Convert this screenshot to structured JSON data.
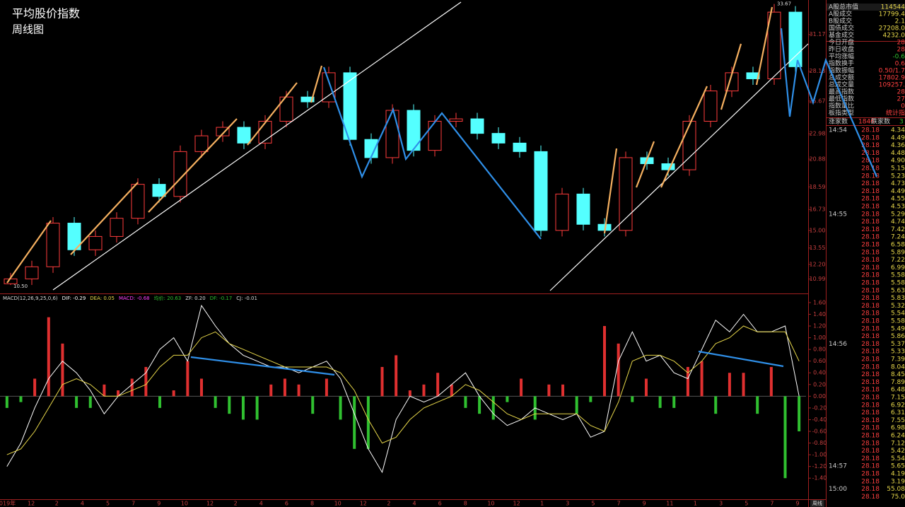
{
  "title": "平均股价指数",
  "subtitle": "周线图",
  "chart_data": [
    {
      "type": "candlestick",
      "ylim": [
        9.8,
        34.0
      ],
      "yticks": [
        10.99,
        {
          "value": 12.2,
          "label": "12.20"
        },
        13.55,
        {
          "value": 15,
          "label": "15.00"
        },
        16.73,
        18.59,
        20.88,
        22.98,
        25.67,
        28.13,
        31.17
      ],
      "up_color": "#ff3c3c",
      "down_color": "#54ffff",
      "open": [
        10.6,
        11.0,
        12.0,
        15.6,
        13.4,
        14.5,
        16.0,
        18.8,
        17.8,
        21.5,
        22.8,
        23.5,
        22.2,
        24.0,
        26.0,
        25.6,
        28.0,
        22.5,
        21.0,
        24.9,
        21.6,
        24.0,
        24.2,
        23.0,
        22.2,
        21.5,
        15.0,
        18.0,
        15.5,
        15.0,
        21.0,
        20.5,
        20.0,
        24.0,
        26.5,
        28.0,
        27.5,
        33.0
      ],
      "high": [
        11.5,
        12.5,
        16.1,
        16.1,
        15.0,
        16.5,
        19.3,
        19.3,
        22.0,
        23.3,
        24.0,
        24.0,
        24.5,
        26.5,
        26.5,
        28.5,
        28.5,
        23.0,
        25.4,
        25.4,
        24.5,
        24.7,
        24.7,
        23.5,
        22.7,
        22.0,
        18.5,
        18.5,
        16.0,
        21.5,
        21.5,
        21.0,
        24.5,
        27.0,
        28.5,
        28.5,
        33.67,
        33.5
      ],
      "low": [
        10.5,
        10.5,
        11.5,
        12.9,
        12.9,
        14.0,
        15.5,
        17.3,
        17.3,
        21.0,
        22.3,
        21.7,
        21.7,
        23.5,
        25.1,
        25.1,
        22.0,
        20.5,
        20.5,
        21.1,
        21.1,
        23.5,
        22.5,
        21.7,
        21.0,
        14.5,
        14.5,
        15.0,
        14.5,
        14.5,
        20.0,
        19.5,
        19.5,
        23.5,
        26.0,
        27.0,
        27.0,
        28.0
      ],
      "close": [
        11.0,
        12.0,
        15.6,
        13.4,
        14.5,
        16.0,
        18.8,
        17.8,
        21.5,
        22.8,
        23.5,
        22.2,
        24.0,
        26.0,
        25.6,
        28.0,
        22.5,
        21.0,
        24.9,
        21.6,
        24.0,
        24.2,
        23.0,
        22.2,
        21.5,
        15.0,
        18.0,
        15.5,
        15.0,
        21.0,
        20.5,
        20.0,
        24.0,
        26.5,
        28.0,
        27.5,
        33.0,
        28.5
      ],
      "annotations": [
        {
          "value": 10.5,
          "label": "10.50"
        },
        {
          "value": 33.67,
          "label": "33.67"
        }
      ]
    },
    {
      "type": "macd",
      "header": [
        {
          "text": "MACD(12,26,9,25,0,6)",
          "color": "#dddddd"
        },
        {
          "text": "DIF: -0.29",
          "color": "#ffffff"
        },
        {
          "text": "DEA: 0.05",
          "color": "#e8d84a"
        },
        {
          "text": "MACD: -0.68",
          "color": "#ff40ff"
        },
        {
          "text": "均价: 20.63",
          "color": "#30c030"
        },
        {
          "text": "ZF: 0.20",
          "color": "#dddddd"
        },
        {
          "text": "DF: -0.17",
          "color": "#30c030"
        },
        {
          "text": "CJ: -0.01",
          "color": "#dddddd"
        }
      ],
      "ylim": [
        -1.76,
        1.72
      ],
      "yticks": [
        {
          "value": 1.6,
          "label": "1.60"
        },
        {
          "value": 1.4,
          "label": "1.40"
        },
        {
          "value": 1.2,
          "label": "1.20"
        },
        {
          "value": 1,
          "label": "1.00"
        },
        {
          "value": 0.8,
          "label": "0.80"
        },
        {
          "value": 0.6,
          "label": "0.60"
        },
        {
          "value": 0.4,
          "label": "0.40"
        },
        {
          "value": 0.2,
          "label": "0.20"
        },
        {
          "value": 0,
          "label": "0.00"
        },
        {
          "value": -0.2,
          "label": "-0.20"
        },
        {
          "value": -0.4,
          "label": "-0.40"
        },
        {
          "value": -0.6,
          "label": "-0.60"
        },
        {
          "value": -0.8,
          "label": "-0.80"
        },
        {
          "value": -1,
          "label": "-1.00"
        },
        {
          "value": -1.2,
          "label": "-1.20"
        },
        {
          "value": -1.4,
          "label": "-1.40"
        }
      ],
      "up_color": "#e03030",
      "down_color": "#30c030",
      "histogram": [
        -0.2,
        -0.1,
        0.3,
        1.35,
        0.9,
        -0.2,
        -0.2,
        0.2,
        0.1,
        0.3,
        0.5,
        -0.2,
        0.1,
        0.6,
        0.3,
        -0.2,
        -0.3,
        -0.4,
        -0.4,
        0.2,
        0.3,
        0.2,
        -0.3,
        0.3,
        -0.4,
        -0.9,
        -0.9,
        0.5,
        0.7,
        0.1,
        0.2,
        0.4,
        0.2,
        -0.2,
        -0.3,
        -0.4,
        -0.1,
        0.3,
        -0.4,
        0.2,
        0.2,
        -0.3,
        -0.1,
        1.2,
        0.9,
        -0.1,
        0.3,
        -0.2,
        -0.2,
        0.5,
        0.6,
        -0.3,
        0.4,
        0.4,
        -0.3,
        0.5,
        -1.4,
        -0.6
      ],
      "series": [
        {
          "color": "#ffffff",
          "values": [
            -1.2,
            -0.8,
            -0.2,
            0.3,
            0.6,
            0.4,
            0.1,
            -0.3,
            0.0,
            0.2,
            0.4,
            0.8,
            1.0,
            0.6,
            1.55,
            1.2,
            0.9,
            0.7,
            0.6,
            0.5,
            0.5,
            0.4,
            0.5,
            0.6,
            0.3,
            -0.3,
            -0.9,
            -1.3,
            -0.4,
            0.0,
            -0.1,
            0.0,
            0.2,
            0.4,
            0.0,
            -0.3,
            -0.5,
            -0.4,
            -0.2,
            -0.3,
            -0.4,
            -0.3,
            -0.7,
            -0.6,
            0.6,
            1.1,
            0.6,
            0.7,
            0.4,
            0.3,
            0.8,
            1.3,
            1.1,
            1.4,
            1.1,
            1.1,
            1.2,
            0.0
          ]
        },
        {
          "color": "#e8d84a",
          "values": [
            -1.0,
            -0.9,
            -0.6,
            -0.2,
            0.2,
            0.3,
            0.2,
            0.0,
            0.0,
            0.1,
            0.2,
            0.5,
            0.7,
            0.7,
            1.0,
            1.1,
            0.9,
            0.8,
            0.7,
            0.6,
            0.5,
            0.5,
            0.5,
            0.5,
            0.4,
            0.1,
            -0.4,
            -0.8,
            -0.7,
            -0.4,
            -0.2,
            -0.1,
            0.0,
            0.2,
            0.1,
            -0.1,
            -0.3,
            -0.4,
            -0.3,
            -0.3,
            -0.3,
            -0.3,
            -0.5,
            -0.6,
            -0.1,
            0.6,
            0.7,
            0.7,
            0.6,
            0.4,
            0.6,
            0.9,
            1.0,
            1.2,
            1.1,
            1.1,
            1.1,
            0.6
          ]
        }
      ]
    }
  ],
  "time_axis_labels": [
    "2019年",
    "12",
    "2",
    "4",
    "5",
    "7",
    "9",
    "10",
    "12",
    "2",
    "4",
    "6",
    "8",
    "10",
    "12",
    "2",
    "4",
    "6",
    "8",
    "10",
    "12",
    "1",
    "3",
    "5",
    "7",
    "9",
    "11",
    "1",
    "3",
    "5",
    "7",
    "9"
  ],
  "period_label": "周线",
  "side_panel": {
    "stats": [
      [
        "A股总市值",
        "114544"
      ],
      [
        "A股成交",
        "17799.4"
      ],
      [
        "B股成交",
        "2.1"
      ],
      [
        "国债成交",
        "27208.0"
      ],
      [
        "基金成交",
        "4232.0"
      ],
      [
        "今日开盘",
        "28"
      ],
      [
        "昨日收盘",
        "28"
      ],
      [
        "平均涨幅",
        "-0.6"
      ],
      [
        "指数换手",
        "0.6"
      ],
      [
        "指数振幅",
        "0.50/1.7"
      ],
      [
        "总成交额",
        "17802.9"
      ],
      [
        "总成交量",
        "109257."
      ],
      [
        "最高指数",
        "28"
      ],
      [
        "最低指数",
        "27"
      ],
      [
        "指数量比",
        "0"
      ],
      [
        "板指类型",
        "统计指"
      ]
    ],
    "breadth": [
      "涨家数",
      "1846",
      "跌家数",
      "3"
    ],
    "ticks": [
      [
        "14:54",
        "28.18",
        "4.34"
      ],
      [
        null,
        "28.18",
        "4.49"
      ],
      [
        null,
        "28.18",
        "4.36"
      ],
      [
        null,
        "28.18",
        "4.48"
      ],
      [
        null,
        "28.18",
        "4.90"
      ],
      [
        null,
        "28.18",
        "5.15"
      ],
      [
        null,
        "28.18",
        "5.23"
      ],
      [
        null,
        "28.18",
        "4.73"
      ],
      [
        null,
        "28.18",
        "4.49"
      ],
      [
        null,
        "28.18",
        "4.55"
      ],
      [
        null,
        "28.18",
        "4.53"
      ],
      [
        "14:55",
        "28.18",
        "5.29"
      ],
      [
        null,
        "28.18",
        "4.74"
      ],
      [
        null,
        "28.18",
        "7.42"
      ],
      [
        null,
        "28.18",
        "7.24"
      ],
      [
        null,
        "28.18",
        "6.58"
      ],
      [
        null,
        "28.18",
        "5.89"
      ],
      [
        null,
        "28.18",
        "7.22"
      ],
      [
        null,
        "28.18",
        "6.99"
      ],
      [
        null,
        "28.18",
        "5.58"
      ],
      [
        null,
        "28.18",
        "5.58"
      ],
      [
        null,
        "28.18",
        "5.63"
      ],
      [
        null,
        "28.18",
        "5.83"
      ],
      [
        null,
        "28.18",
        "5.32"
      ],
      [
        null,
        "28.18",
        "5.54"
      ],
      [
        null,
        "28.18",
        "5.58"
      ],
      [
        null,
        "28.18",
        "5.49"
      ],
      [
        null,
        "28.18",
        "5.86"
      ],
      [
        "14:56",
        "28.18",
        "5.37"
      ],
      [
        null,
        "28.18",
        "5.33"
      ],
      [
        null,
        "28.18",
        "7.39"
      ],
      [
        null,
        "28.18",
        "8.04"
      ],
      [
        null,
        "28.18",
        "8.45"
      ],
      [
        null,
        "28.18",
        "7.89"
      ],
      [
        null,
        "28.18",
        "6.48"
      ],
      [
        null,
        "28.18",
        "7.15"
      ],
      [
        null,
        "28.18",
        "6.92"
      ],
      [
        null,
        "28.18",
        "6.31"
      ],
      [
        null,
        "28.18",
        "7.55"
      ],
      [
        null,
        "28.18",
        "6.98"
      ],
      [
        null,
        "28.18",
        "6.24"
      ],
      [
        null,
        "28.18",
        "7.12"
      ],
      [
        null,
        "28.18",
        "5.42"
      ],
      [
        null,
        "28.18",
        "5.54"
      ],
      [
        "14:57",
        "28.18",
        "5.65"
      ],
      [
        null,
        "28.18",
        "4.19"
      ],
      [
        null,
        "28.18",
        "3.19"
      ],
      [
        "15:00",
        "28.18",
        "55.08"
      ],
      [
        null,
        "28.18",
        "75.0"
      ]
    ]
  }
}
